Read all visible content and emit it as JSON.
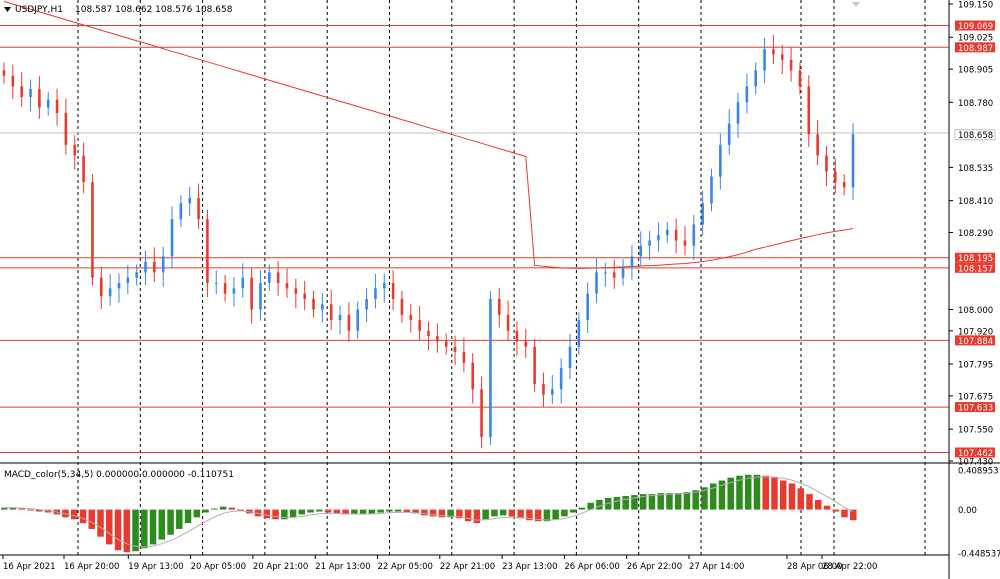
{
  "header": {
    "symbol": "USDJPY,H1",
    "ohlc": "108.587 108.662 108.576 108.658"
  },
  "indicator": {
    "label": "MACD_color(5,34,5) 0.000000 0.000000 -0.110751"
  },
  "colors": {
    "bull": "#3a86e8",
    "bear": "#e83a2e",
    "hline": "#e83a2e",
    "ma": "#e83a2e",
    "macd_pos": "#2e8b1e",
    "macd_neg": "#e83a2e",
    "signal": "#b0b0b0",
    "label_bg": "#e83a2e",
    "grid": "#000000"
  },
  "chart_data": [
    {
      "type": "line",
      "title": "USDJPY,H1",
      "ylim": [
        107.43,
        109.15
      ],
      "price_axis_ticks": [
        "109.150",
        "109.025",
        "108.905",
        "108.780",
        "108.535",
        "108.410",
        "108.290",
        "108.000",
        "107.920",
        "107.795",
        "107.675",
        "107.550",
        "107.430"
      ],
      "time_labels": [
        "16 Apr 2021",
        "16 Apr 20:00",
        "19 Apr 13:00",
        "20 Apr 05:00",
        "20 Apr 21:00",
        "21 Apr 13:00",
        "22 Apr 05:00",
        "22 Apr 21:00",
        "23 Apr 13:00",
        "26 Apr 06:00",
        "26 Apr 22:00",
        "27 Apr 14:00",
        "28 Apr 06:00",
        "28 Apr 22:00"
      ],
      "horizontal_levels": [
        "109.069",
        "108.987",
        "108.195",
        "108.157",
        "107.884",
        "107.633",
        "107.462"
      ],
      "current_price": "108.658",
      "grid": true,
      "series": [
        {
          "close": [
            108.88,
            108.84,
            108.8,
            108.83,
            108.76,
            108.79,
            108.74,
            108.62,
            108.58,
            108.48,
            108.12,
            108.05,
            108.08,
            108.1,
            108.12,
            108.14,
            108.18,
            108.14,
            108.2,
            108.34,
            108.4,
            108.42,
            108.34,
            108.1,
            108.1,
            108.06,
            108.08,
            108.12,
            108.0,
            108.1,
            108.14,
            108.1,
            108.08,
            108.06,
            108.04,
            108.0,
            108.02,
            107.96,
            107.98,
            107.92,
            108.0,
            108.04,
            108.08,
            108.1,
            108.04,
            107.98,
            107.96,
            107.92,
            107.9,
            107.88,
            107.86,
            107.84,
            107.8,
            107.7,
            107.52,
            108.04,
            107.98,
            107.92,
            107.88,
            107.86,
            107.72,
            107.68,
            107.7,
            107.78,
            107.86,
            107.96,
            108.06,
            108.14,
            108.14,
            108.12,
            108.16,
            108.2,
            108.24,
            108.26,
            108.28,
            108.3,
            108.26,
            108.24,
            108.32,
            108.4,
            108.5,
            108.62,
            108.7,
            108.78,
            108.84,
            108.9,
            108.98,
            108.96,
            108.94,
            108.9,
            108.84,
            108.66,
            108.58,
            108.52,
            108.48,
            108.46,
            108.66
          ]
        },
        {
          "name": "",
          "values": "moving-average"
        }
      ]
    },
    {
      "type": "bar",
      "title": "MACD_color(5,34,5)",
      "ylim": [
        -0.448537,
        0.408953
      ],
      "axis_ticks": [
        "0.408953",
        "0.00",
        "-0.448537"
      ],
      "values": [
        0.02,
        0.02,
        0.01,
        0.0,
        -0.02,
        -0.03,
        -0.05,
        -0.08,
        -0.1,
        -0.14,
        -0.2,
        -0.28,
        -0.36,
        -0.42,
        -0.44,
        -0.43,
        -0.4,
        -0.36,
        -0.31,
        -0.26,
        -0.2,
        -0.14,
        -0.08,
        -0.03,
        0.01,
        0.03,
        0.02,
        0.0,
        -0.04,
        -0.07,
        -0.09,
        -0.1,
        -0.1,
        -0.08,
        -0.05,
        -0.03,
        -0.02,
        -0.03,
        -0.04,
        -0.05,
        -0.05,
        -0.05,
        -0.04,
        -0.03,
        -0.02,
        -0.02,
        -0.03,
        -0.04,
        -0.06,
        -0.07,
        -0.08,
        -0.08,
        -0.09,
        -0.12,
        -0.14,
        -0.1,
        -0.07,
        -0.06,
        -0.07,
        -0.09,
        -0.11,
        -0.12,
        -0.12,
        -0.1,
        -0.07,
        -0.03,
        0.02,
        0.07,
        0.1,
        0.12,
        0.13,
        0.14,
        0.15,
        0.16,
        0.16,
        0.17,
        0.17,
        0.17,
        0.18,
        0.2,
        0.23,
        0.27,
        0.3,
        0.33,
        0.35,
        0.36,
        0.36,
        0.35,
        0.33,
        0.3,
        0.27,
        0.22,
        0.16,
        0.1,
        0.04,
        -0.02,
        -0.08,
        -0.11
      ]
    }
  ]
}
